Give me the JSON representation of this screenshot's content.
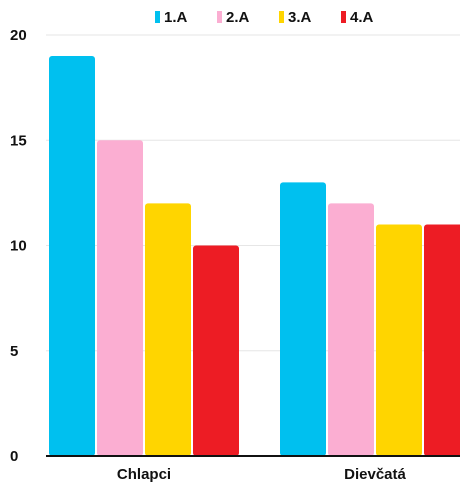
{
  "chart_data": {
    "type": "bar",
    "categories": [
      "Chlapci",
      "Dievčatá"
    ],
    "series": [
      {
        "name": "1.A",
        "values": [
          19,
          13
        ],
        "color": "#00c0ef"
      },
      {
        "name": "2.A",
        "values": [
          15,
          12
        ],
        "color": "#fbaed2"
      },
      {
        "name": "3.A",
        "values": [
          12,
          11
        ],
        "color": "#ffd500"
      },
      {
        "name": "4.A",
        "values": [
          10,
          11
        ],
        "color": "#ed1c24"
      }
    ],
    "yticks": [
      "0",
      "5",
      "10",
      "15",
      "20"
    ],
    "ylim": [
      0,
      20
    ],
    "title": "",
    "xlabel": "",
    "ylabel": "",
    "grid": true,
    "legend": "top"
  }
}
